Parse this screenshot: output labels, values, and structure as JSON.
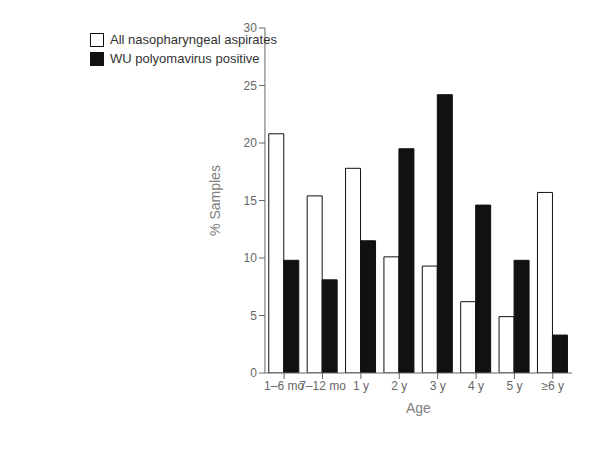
{
  "chart_data": {
    "type": "bar",
    "xlabel": "Age",
    "ylabel": "% Samples",
    "categories": [
      "1–6 mo",
      "7–12 mo",
      "1 y",
      "2 y",
      "3 y",
      "4 y",
      "5 y",
      "≥6 y"
    ],
    "series": [
      {
        "name": "All nasopharyngeal aspirates",
        "color": "#ffffff",
        "values": [
          20.8,
          15.4,
          17.8,
          10.1,
          9.3,
          6.2,
          4.9,
          15.7
        ]
      },
      {
        "name": "WU polyomavirus positive",
        "color": "#111111",
        "values": [
          9.8,
          8.1,
          11.5,
          19.5,
          24.2,
          14.6,
          9.8,
          3.3
        ]
      }
    ],
    "ylim": [
      0,
      30
    ],
    "yticks": [
      0,
      5,
      10,
      15,
      20,
      25,
      30
    ],
    "grid": false,
    "legend": "upper left"
  }
}
